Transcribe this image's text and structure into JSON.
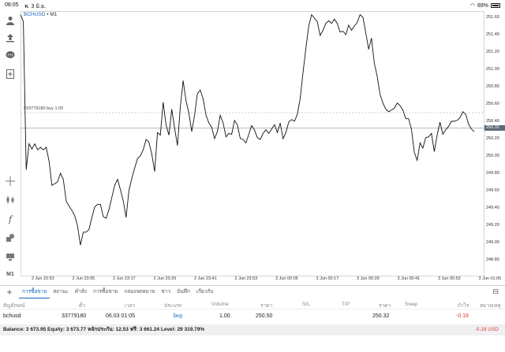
{
  "status_bar": {
    "time": "08:05",
    "date": "พ. 3 มิ.ย.",
    "battery": "89%"
  },
  "chart": {
    "symbol": "BCHUSD",
    "separator": "•",
    "timeframe": "M1",
    "order_label": "#33779180 buy 1.00",
    "current_price": "250.32",
    "price_ticks": [
      "251.60",
      "251.40",
      "251.20",
      "251.00",
      "250.80",
      "250.60",
      "250.40",
      "250.20",
      "250.00",
      "249.80",
      "249.60",
      "249.40",
      "249.20",
      "249.00",
      "248.80"
    ],
    "time_ticks": [
      "2 Jun 22:53",
      "2 Jun 23:05",
      "2 Jun 23:17",
      "2 Jun 23:29",
      "2 Jun 23:41",
      "2 Jun 23:53",
      "3 Jun 00:05",
      "3 Jun 00:17",
      "3 Jun 00:29",
      "3 Jun 00:41",
      "3 Jun 00:53",
      "3 Jun 01:05"
    ]
  },
  "chart_data": {
    "type": "line",
    "ylim": [
      248.7,
      251.7
    ],
    "order_price": 250.5,
    "current_price": 250.32,
    "values": [
      251.63,
      251.55,
      249.84,
      250.14,
      250.08,
      250.14,
      250.07,
      250.1,
      250.07,
      250.1,
      249.94,
      249.66,
      249.68,
      249.7,
      249.8,
      249.73,
      249.48,
      249.42,
      249.37,
      249.31,
      249.19,
      248.97,
      249.12,
      249.12,
      249.15,
      249.29,
      249.41,
      249.44,
      249.44,
      249.3,
      249.28,
      249.38,
      249.52,
      249.66,
      249.73,
      249.61,
      249.48,
      249.29,
      249.6,
      249.74,
      249.86,
      249.97,
      250.0,
      250.07,
      250.19,
      250.16,
      250.02,
      249.82,
      250.27,
      250.24,
      250.62,
      250.36,
      250.24,
      250.54,
      250.32,
      250.12,
      250.56,
      250.87,
      250.64,
      250.49,
      250.28,
      250.47,
      250.72,
      250.76,
      250.66,
      250.47,
      250.38,
      250.33,
      250.2,
      250.28,
      250.47,
      250.38,
      250.22,
      250.26,
      250.25,
      250.41,
      250.36,
      250.2,
      250.19,
      250.15,
      250.25,
      250.35,
      250.3,
      250.21,
      250.19,
      250.26,
      250.3,
      250.26,
      250.31,
      250.36,
      250.27,
      250.38,
      250.2,
      250.27,
      250.39,
      250.42,
      250.4,
      250.48,
      250.66,
      250.96,
      251.24,
      251.5,
      251.63,
      251.59,
      251.55,
      251.39,
      251.45,
      251.53,
      251.56,
      251.53,
      251.58,
      251.53,
      251.43,
      251.44,
      251.4,
      251.51,
      251.45,
      251.5,
      251.54,
      251.63,
      251.6,
      251.42,
      251.23,
      251.36,
      251.07,
      250.92,
      250.71,
      250.61,
      250.54,
      250.51,
      250.53,
      250.55,
      250.61,
      250.58,
      250.53,
      250.43,
      250.43,
      250.31,
      250.04,
      249.95,
      250.15,
      250.09,
      250.21,
      250.22,
      250.26,
      250.05,
      250.24,
      250.39,
      250.25,
      250.3,
      250.34,
      250.4,
      250.4,
      250.41,
      250.44,
      250.51,
      250.48,
      250.37,
      250.31,
      250.28
    ]
  },
  "tabs": {
    "items": [
      "การซื้อขาย",
      "สถานะ",
      "คำสั่ง",
      "การซื้อขาย",
      "กล่องจดหมาย",
      "ข่าว",
      "บันทึก",
      "เกี่ยวกับ"
    ],
    "add": "+"
  },
  "table": {
    "headers": [
      "สัญลักษณ์",
      "ตั๋ว",
      "เวลา",
      "ประเภท",
      "Volume",
      "ราคา",
      "S/L",
      "T/P",
      "ราคา",
      "Swap",
      "กำไร",
      "หมายเหตุ"
    ],
    "row": {
      "symbol": "bchusd",
      "ticket": "33779180",
      "time": "06.03 01:05",
      "type": "buy",
      "volume": "1.00",
      "price": "250.50",
      "sl": "",
      "tp": "",
      "current": "250.32",
      "swap": "",
      "profit": "-0.18",
      "comment": ""
    }
  },
  "balance": {
    "text": "Balance: 3 673.95 Equity: 3 673.77 หลักประกัน: 12.53 ฟรี: 3 661.24 Level: 29 319.79%",
    "total": "-0.18 USD"
  },
  "colors": {
    "accent": "#1565c0",
    "loss": "#e53935",
    "price_tag": "#5f6b77",
    "line": "#111111"
  },
  "icons": [
    "person-icon",
    "upload-icon",
    "chat-icon",
    "add-doc-icon",
    "crosshair-icon",
    "candlestick-icon",
    "function-icon",
    "objects-icon",
    "trade-icon",
    "timeframe-label"
  ]
}
